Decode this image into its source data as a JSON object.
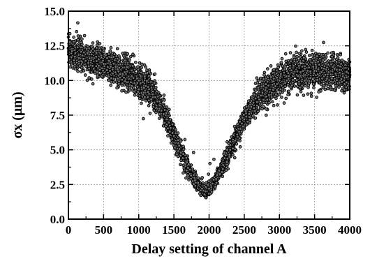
{
  "chart_data": {
    "type": "scatter",
    "title": "",
    "xlabel": "Delay setting of channel A",
    "ylabel": "σx (μm)",
    "xlim": [
      0,
      4000
    ],
    "ylim": [
      0,
      15
    ],
    "x_ticks": [
      0,
      500,
      1000,
      1500,
      2000,
      2500,
      3000,
      3500,
      4000
    ],
    "y_ticks": [
      0.0,
      2.5,
      5.0,
      7.5,
      10.0,
      12.5,
      15.0
    ],
    "x_tick_labels": [
      "0",
      "500",
      "1000",
      "1500",
      "2000",
      "2500",
      "3000",
      "3500",
      "4000"
    ],
    "y_tick_labels": [
      "0.0",
      "2.5",
      "5.0",
      "7.5",
      "10.0",
      "12.5",
      "15.0"
    ],
    "grid": true,
    "marker_color": "#000000",
    "marker_fill": "#777777",
    "series": [
      {
        "x": [
          0,
          100,
          200,
          300,
          400,
          500,
          600,
          700,
          800,
          900,
          1000,
          1100,
          1200,
          1300,
          1400,
          1500,
          1600,
          1700,
          1800,
          1900,
          1950,
          2000,
          2100,
          2200,
          2300,
          2400,
          2500,
          2600,
          2700,
          2800,
          2900,
          3000,
          3100,
          3200,
          3300,
          3400,
          3500,
          3600,
          3700,
          3800,
          3900,
          4000
        ],
        "y": [
          12.3,
          12.0,
          11.8,
          11.6,
          11.4,
          11.2,
          11.0,
          10.8,
          10.6,
          10.3,
          10.0,
          9.6,
          9.0,
          8.2,
          7.2,
          6.0,
          4.8,
          3.7,
          2.8,
          2.2,
          2.0,
          2.2,
          2.9,
          3.9,
          5.0,
          6.1,
          7.2,
          8.1,
          8.8,
          9.3,
          9.7,
          10.0,
          10.3,
          10.5,
          10.6,
          10.7,
          10.7,
          10.6,
          10.6,
          10.5,
          10.5,
          10.4
        ]
      }
    ]
  }
}
